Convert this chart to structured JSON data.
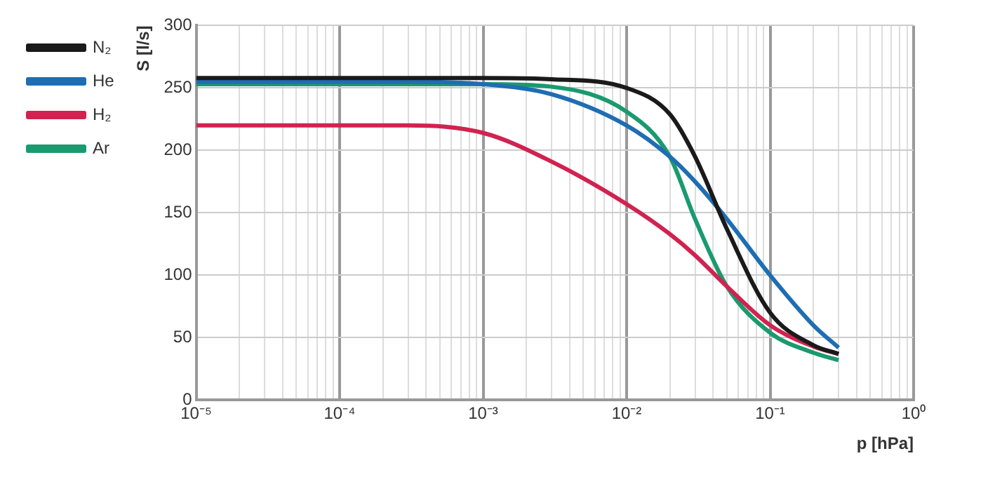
{
  "chart_data": {
    "type": "line",
    "xlabel": "p [hPa]",
    "ylabel": "S [l/s]",
    "x": [
      1e-05,
      0.0003,
      0.001,
      0.003,
      0.01,
      0.02,
      0.03,
      0.05,
      0.1,
      0.2,
      0.3
    ],
    "series": [
      {
        "name": "N₂",
        "color": "#1a1a1a",
        "values": [
          258,
          258,
          258,
          257,
          250,
          229,
          195,
          137,
          70,
          44,
          37
        ]
      },
      {
        "name": "He",
        "color": "#1f6db3",
        "values": [
          255,
          255,
          253,
          245,
          220,
          195,
          175,
          145,
          100,
          60,
          42
        ]
      },
      {
        "name": "H₂",
        "color": "#d0234f",
        "values": [
          220,
          220,
          214,
          191,
          157,
          133,
          116,
          91,
          60,
          43,
          37
        ]
      },
      {
        "name": "Ar",
        "color": "#1a9a6e",
        "values": [
          253,
          253,
          253,
          251,
          231,
          195,
          145,
          91,
          54,
          38,
          32
        ]
      }
    ],
    "log": "x",
    "xlim": [
      1e-05,
      1
    ],
    "xticks": [
      {
        "value": 1e-05,
        "label": "10⁻⁵"
      },
      {
        "value": 2e-05,
        "label": null
      },
      {
        "value": 3e-05,
        "label": null
      },
      {
        "value": 4e-05,
        "label": null
      },
      {
        "value": 5e-05,
        "label": null
      },
      {
        "value": 6e-05,
        "label": null
      },
      {
        "value": 7e-05,
        "label": null
      },
      {
        "value": 8e-05,
        "label": null
      },
      {
        "value": 9e-05,
        "label": null
      },
      {
        "value": 0.0001,
        "label": "10⁻⁴"
      },
      {
        "value": 0.0002,
        "label": null
      },
      {
        "value": 0.0003,
        "label": null
      },
      {
        "value": 0.0004,
        "label": null
      },
      {
        "value": 0.0005,
        "label": null
      },
      {
        "value": 0.0006,
        "label": null
      },
      {
        "value": 0.0007,
        "label": null
      },
      {
        "value": 0.0008,
        "label": null
      },
      {
        "value": 0.0009,
        "label": null
      },
      {
        "value": 0.001,
        "label": "10⁻³"
      },
      {
        "value": 0.002,
        "label": null
      },
      {
        "value": 0.003,
        "label": null
      },
      {
        "value": 0.004,
        "label": null
      },
      {
        "value": 0.005,
        "label": null
      },
      {
        "value": 0.006,
        "label": null
      },
      {
        "value": 0.007,
        "label": null
      },
      {
        "value": 0.008,
        "label": null
      },
      {
        "value": 0.009,
        "label": null
      },
      {
        "value": 0.01,
        "label": "10⁻²"
      },
      {
        "value": 0.02,
        "label": null
      },
      {
        "value": 0.03,
        "label": null
      },
      {
        "value": 0.04,
        "label": null
      },
      {
        "value": 0.05,
        "label": null
      },
      {
        "value": 0.06,
        "label": null
      },
      {
        "value": 0.07,
        "label": null
      },
      {
        "value": 0.08,
        "label": null
      },
      {
        "value": 0.09,
        "label": null
      },
      {
        "value": 0.1,
        "label": "10⁻¹"
      },
      {
        "value": 0.2,
        "label": null
      },
      {
        "value": 0.3,
        "label": null
      },
      {
        "value": 0.4,
        "label": null
      },
      {
        "value": 0.5,
        "label": null
      },
      {
        "value": 0.6,
        "label": null
      },
      {
        "value": 0.7,
        "label": null
      },
      {
        "value": 0.8,
        "label": null
      },
      {
        "value": 0.9,
        "label": null
      },
      {
        "value": 1,
        "label": "10⁰"
      }
    ],
    "ylim": [
      0,
      300
    ],
    "yticks": [
      0,
      50,
      100,
      150,
      200,
      250,
      300
    ],
    "grid": true,
    "legend": "left",
    "marker": "none",
    "line_style": "solid"
  }
}
